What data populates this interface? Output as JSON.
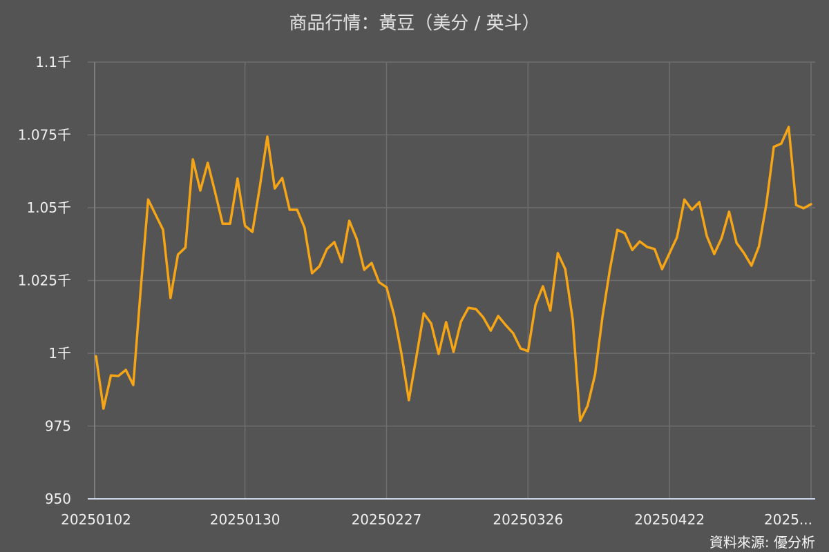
{
  "chart_data": {
    "type": "line",
    "title": "商品行情：黃豆（美分 / 英斗）",
    "xlabel": "",
    "ylabel": "",
    "ylim": [
      950,
      1100
    ],
    "grid": true,
    "legend": "none",
    "y_ticks": [
      {
        "value": 950,
        "label": "950"
      },
      {
        "value": 975,
        "label": "975"
      },
      {
        "value": 1000,
        "label": "1千"
      },
      {
        "value": 1025,
        "label": "1.025千"
      },
      {
        "value": 1050,
        "label": "1.05千"
      },
      {
        "value": 1075,
        "label": "1.075千"
      },
      {
        "value": 1100,
        "label": "1.1千"
      }
    ],
    "x_ticks": [
      {
        "index": 0,
        "label": "20250102"
      },
      {
        "index": 20,
        "label": "20250130"
      },
      {
        "index": 39,
        "label": "20250227"
      },
      {
        "index": 58,
        "label": "20250326"
      },
      {
        "index": 77,
        "label": "20250422"
      },
      {
        "index": 96,
        "label": "2025..."
      }
    ],
    "series": [
      {
        "color": "#f5a516",
        "values": [
          999.0,
          981.0,
          992.4,
          992.2,
          994.3,
          989.1,
          1022.0,
          1052.8,
          1047.6,
          1042.4,
          1019.0,
          1033.9,
          1036.3,
          1066.6,
          1055.9,
          1065.4,
          1055.2,
          1044.5,
          1044.5,
          1060.0,
          1043.8,
          1041.7,
          1057.3,
          1074.4,
          1056.6,
          1060.2,
          1049.3,
          1049.3,
          1043.1,
          1027.5,
          1029.9,
          1035.8,
          1038.2,
          1031.3,
          1045.5,
          1039.3,
          1028.7,
          1031.0,
          1024.4,
          1022.7,
          1013.3,
          1000.0,
          983.9,
          998.6,
          1013.7,
          1010.2,
          999.8,
          1010.7,
          1000.5,
          1010.9,
          1015.6,
          1015.2,
          1012.3,
          1007.8,
          1012.8,
          1009.7,
          1006.9,
          1001.7,
          1000.7,
          1016.6,
          1023.0,
          1014.7,
          1034.4,
          1028.9,
          1011.6,
          976.8,
          982.0,
          992.7,
          1012.6,
          1028.9,
          1042.4,
          1041.2,
          1035.5,
          1038.4,
          1036.5,
          1035.8,
          1028.9,
          1034.4,
          1039.8,
          1052.8,
          1049.3,
          1051.9,
          1040.3,
          1034.1,
          1039.6,
          1048.6,
          1037.9,
          1034.4,
          1030.1,
          1036.7,
          1051.2,
          1070.9,
          1072.0,
          1077.7,
          1050.9,
          1049.8,
          1051.2
        ]
      }
    ]
  },
  "source": "資料來源: 優分析",
  "colors": {
    "background": "#545454",
    "grid": "#6e6e6e",
    "axis": "#ccd6eb",
    "line": "#f5a516",
    "text": "#f0f0f0"
  }
}
